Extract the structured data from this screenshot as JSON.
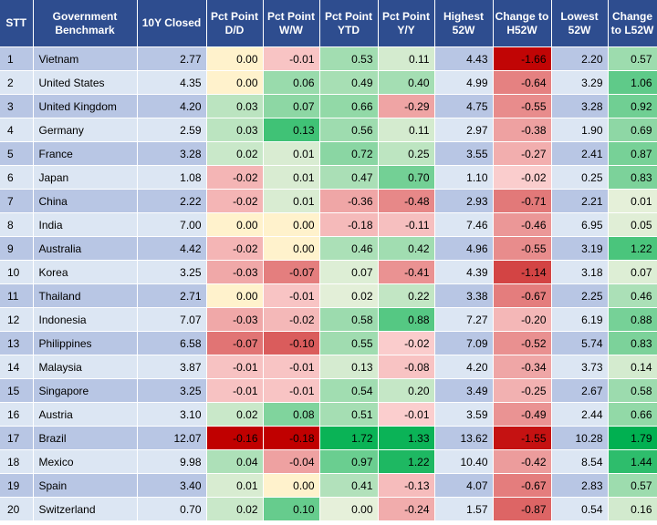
{
  "headers": [
    "STT",
    "Government Benchmark",
    "10Y Closed",
    "Pct Point D/D",
    "Pct Point W/W",
    "Pct Point YTD",
    "Pct Point Y/Y",
    "Highest 52W",
    "Change to H52W",
    "Lowest 52W",
    "Change to L52W"
  ],
  "rows": [
    {
      "stt": "1",
      "name": "Vietnam",
      "closed": "2.77",
      "dd": "0.00",
      "ww": "-0.01",
      "ytd": "0.53",
      "yy": "0.11",
      "high": "4.43",
      "chh": "-1.66",
      "low": "2.20",
      "chl": "0.57"
    },
    {
      "stt": "2",
      "name": "United States",
      "closed": "4.35",
      "dd": "0.00",
      "ww": "0.06",
      "ytd": "0.49",
      "yy": "0.40",
      "high": "4.99",
      "chh": "-0.64",
      "low": "3.29",
      "chl": "1.06"
    },
    {
      "stt": "3",
      "name": "United Kingdom",
      "closed": "4.20",
      "dd": "0.03",
      "ww": "0.07",
      "ytd": "0.66",
      "yy": "-0.29",
      "high": "4.75",
      "chh": "-0.55",
      "low": "3.28",
      "chl": "0.92"
    },
    {
      "stt": "4",
      "name": "Germany",
      "closed": "2.59",
      "dd": "0.03",
      "ww": "0.13",
      "ytd": "0.56",
      "yy": "0.11",
      "high": "2.97",
      "chh": "-0.38",
      "low": "1.90",
      "chl": "0.69"
    },
    {
      "stt": "5",
      "name": "France",
      "closed": "3.28",
      "dd": "0.02",
      "ww": "0.01",
      "ytd": "0.72",
      "yy": "0.25",
      "high": "3.55",
      "chh": "-0.27",
      "low": "2.41",
      "chl": "0.87"
    },
    {
      "stt": "6",
      "name": "Japan",
      "closed": "1.08",
      "dd": "-0.02",
      "ww": "0.01",
      "ytd": "0.47",
      "yy": "0.70",
      "high": "1.10",
      "chh": "-0.02",
      "low": "0.25",
      "chl": "0.83"
    },
    {
      "stt": "7",
      "name": "China",
      "closed": "2.22",
      "dd": "-0.02",
      "ww": "0.01",
      "ytd": "-0.36",
      "yy": "-0.48",
      "high": "2.93",
      "chh": "-0.71",
      "low": "2.21",
      "chl": "0.01"
    },
    {
      "stt": "8",
      "name": "India",
      "closed": "7.00",
      "dd": "0.00",
      "ww": "0.00",
      "ytd": "-0.18",
      "yy": "-0.11",
      "high": "7.46",
      "chh": "-0.46",
      "low": "6.95",
      "chl": "0.05"
    },
    {
      "stt": "9",
      "name": "Australia",
      "closed": "4.42",
      "dd": "-0.02",
      "ww": "0.00",
      "ytd": "0.46",
      "yy": "0.42",
      "high": "4.96",
      "chh": "-0.55",
      "low": "3.19",
      "chl": "1.22"
    },
    {
      "stt": "10",
      "name": "Korea",
      "closed": "3.25",
      "dd": "-0.03",
      "ww": "-0.07",
      "ytd": "0.07",
      "yy": "-0.41",
      "high": "4.39",
      "chh": "-1.14",
      "low": "3.18",
      "chl": "0.07"
    },
    {
      "stt": "11",
      "name": "Thailand",
      "closed": "2.71",
      "dd": "0.00",
      "ww": "-0.01",
      "ytd": "0.02",
      "yy": "0.22",
      "high": "3.38",
      "chh": "-0.67",
      "low": "2.25",
      "chl": "0.46"
    },
    {
      "stt": "12",
      "name": "Indonesia",
      "closed": "7.07",
      "dd": "-0.03",
      "ww": "-0.02",
      "ytd": "0.58",
      "yy": "0.88",
      "high": "7.27",
      "chh": "-0.20",
      "low": "6.19",
      "chl": "0.88"
    },
    {
      "stt": "13",
      "name": "Philippines",
      "closed": "6.58",
      "dd": "-0.07",
      "ww": "-0.10",
      "ytd": "0.55",
      "yy": "-0.02",
      "high": "7.09",
      "chh": "-0.52",
      "low": "5.74",
      "chl": "0.83"
    },
    {
      "stt": "14",
      "name": "Malaysia",
      "closed": "3.87",
      "dd": "-0.01",
      "ww": "-0.01",
      "ytd": "0.13",
      "yy": "-0.08",
      "high": "4.20",
      "chh": "-0.34",
      "low": "3.73",
      "chl": "0.14"
    },
    {
      "stt": "15",
      "name": "Singapore",
      "closed": "3.25",
      "dd": "-0.01",
      "ww": "-0.01",
      "ytd": "0.54",
      "yy": "0.20",
      "high": "3.49",
      "chh": "-0.25",
      "low": "2.67",
      "chl": "0.58"
    },
    {
      "stt": "16",
      "name": "Austria",
      "closed": "3.10",
      "dd": "0.02",
      "ww": "0.08",
      "ytd": "0.51",
      "yy": "-0.01",
      "high": "3.59",
      "chh": "-0.49",
      "low": "2.44",
      "chl": "0.66"
    },
    {
      "stt": "17",
      "name": "Brazil",
      "closed": "12.07",
      "dd": "-0.16",
      "ww": "-0.18",
      "ytd": "1.72",
      "yy": "1.33",
      "high": "13.62",
      "chh": "-1.55",
      "low": "10.28",
      "chl": "1.79"
    },
    {
      "stt": "18",
      "name": "Mexico",
      "closed": "9.98",
      "dd": "0.04",
      "ww": "-0.04",
      "ytd": "0.97",
      "yy": "1.22",
      "high": "10.40",
      "chh": "-0.42",
      "low": "8.54",
      "chl": "1.44"
    },
    {
      "stt": "19",
      "name": "Spain",
      "closed": "3.40",
      "dd": "0.01",
      "ww": "0.00",
      "ytd": "0.41",
      "yy": "-0.13",
      "high": "4.07",
      "chh": "-0.67",
      "low": "2.83",
      "chl": "0.57"
    },
    {
      "stt": "20",
      "name": "Switzerland",
      "closed": "0.70",
      "dd": "0.02",
      "ww": "0.10",
      "ytd": "0.00",
      "yy": "-0.24",
      "high": "1.57",
      "chh": "-0.87",
      "low": "0.54",
      "chl": "0.16"
    }
  ],
  "colors": {
    "header_bg": "#2e4d8f",
    "row_odd": "#b8c6e4",
    "row_even": "#dce6f3",
    "neutral_zero": "#fff2cc",
    "positive_light": "#e6f0da",
    "positive_strong": "#00b050",
    "negative_light": "#fbcfcf",
    "negative_strong": "#c00000"
  }
}
